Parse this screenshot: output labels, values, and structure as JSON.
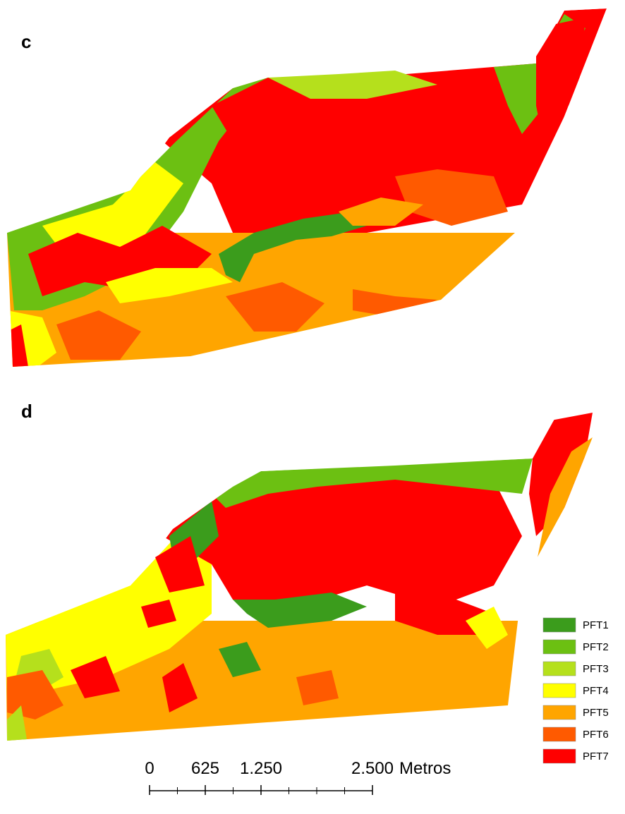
{
  "panels": [
    {
      "label": "c"
    },
    {
      "label": "d"
    }
  ],
  "legend": [
    {
      "label": "PFT1",
      "color": "#3b9c1c"
    },
    {
      "label": "PFT2",
      "color": "#6cc012"
    },
    {
      "label": "PFT3",
      "color": "#b5e01c"
    },
    {
      "label": "PFT4",
      "color": "#ffff00"
    },
    {
      "label": "PFT5",
      "color": "#ffa500"
    },
    {
      "label": "PFT6",
      "color": "#ff5a00"
    },
    {
      "label": "PFT7",
      "color": "#ff0000"
    }
  ],
  "scale_bar": {
    "ticks": [
      0,
      625,
      {
        "value": 1250,
        "label": "1.250"
      },
      {
        "value": 2500,
        "label": "2.500"
      }
    ],
    "unit": "Metros"
  }
}
